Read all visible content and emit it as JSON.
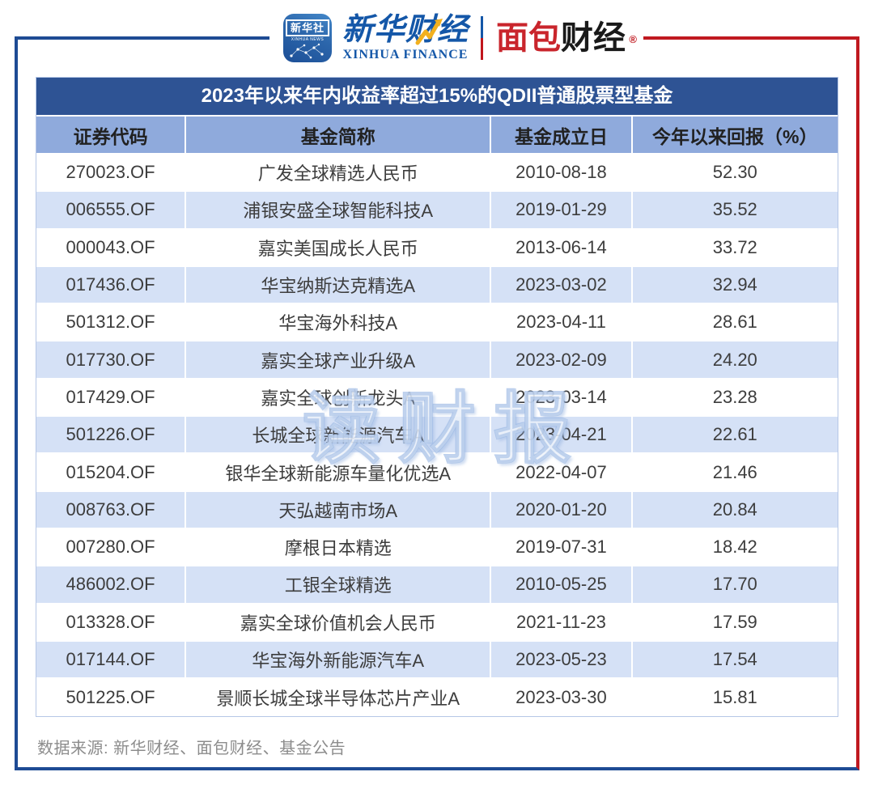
{
  "brand": {
    "app_icon": {
      "cn": "新华社",
      "en": "XINHUA NEWS"
    },
    "xinhua_finance": {
      "cn": "新华财经",
      "en": "XINHUA FINANCE"
    },
    "bread_finance": {
      "red_part": "面包",
      "black_part": "财经",
      "reg_mark": "®"
    },
    "colors": {
      "brand_blue": "#1457A8",
      "brand_red": "#C9252C",
      "frame_blue": "#1E4B94",
      "frame_red": "#C01920"
    }
  },
  "table": {
    "title": "2023年以来年内收益率超过15%的QDII普通股票型基金",
    "columns": [
      "证券代码",
      "基金简称",
      "基金成立日",
      "今年以来回报（%）"
    ],
    "rows": [
      [
        "270023.OF",
        "广发全球精选人民币",
        "2010-08-18",
        "52.30"
      ],
      [
        "006555.OF",
        "浦银安盛全球智能科技A",
        "2019-01-29",
        "35.52"
      ],
      [
        "000043.OF",
        "嘉实美国成长人民币",
        "2013-06-14",
        "33.72"
      ],
      [
        "017436.OF",
        "华宝纳斯达克精选A",
        "2023-03-02",
        "32.94"
      ],
      [
        "501312.OF",
        "华宝海外科技A",
        "2023-04-11",
        "28.61"
      ],
      [
        "017730.OF",
        "嘉实全球产业升级A",
        "2023-02-09",
        "24.20"
      ],
      [
        "017429.OF",
        "嘉实全球创新龙头A",
        "2023-03-14",
        "23.28"
      ],
      [
        "501226.OF",
        "长城全球新能源汽车A",
        "2023-04-21",
        "22.61"
      ],
      [
        "015204.OF",
        "银华全球新能源车量化优选A",
        "2022-04-07",
        "21.46"
      ],
      [
        "008763.OF",
        "天弘越南市场A",
        "2020-01-20",
        "20.84"
      ],
      [
        "007280.OF",
        "摩根日本精选",
        "2019-07-31",
        "18.42"
      ],
      [
        "486002.OF",
        "工银全球精选",
        "2010-05-25",
        "17.70"
      ],
      [
        "013328.OF",
        "嘉实全球价值机会人民币",
        "2021-11-23",
        "17.59"
      ],
      [
        "017144.OF",
        "华宝海外新能源汽车A",
        "2023-05-23",
        "17.54"
      ],
      [
        "501225.OF",
        "景顺长城全球半导体芯片产业A",
        "2023-03-30",
        "15.81"
      ]
    ],
    "colors": {
      "title_bg": "#2E5394",
      "header_bg": "#8FAADC",
      "row_alt_bg": "#D5E1F6",
      "text": "#3D3D3D"
    }
  },
  "chart_data": {
    "type": "table",
    "title": "2023年以来年内收益率超过15%的QDII普通股票型基金",
    "columns": [
      "证券代码",
      "基金简称",
      "基金成立日",
      "今年以来回报（%）"
    ],
    "rows": [
      [
        "270023.OF",
        "广发全球精选人民币",
        "2010-08-18",
        52.3
      ],
      [
        "006555.OF",
        "浦银安盛全球智能科技A",
        "2019-01-29",
        35.52
      ],
      [
        "000043.OF",
        "嘉实美国成长人民币",
        "2013-06-14",
        33.72
      ],
      [
        "017436.OF",
        "华宝纳斯达克精选A",
        "2023-03-02",
        32.94
      ],
      [
        "501312.OF",
        "华宝海外科技A",
        "2023-04-11",
        28.61
      ],
      [
        "017730.OF",
        "嘉实全球产业升级A",
        "2023-02-09",
        24.2
      ],
      [
        "017429.OF",
        "嘉实全球创新龙头A",
        "2023-03-14",
        23.28
      ],
      [
        "501226.OF",
        "长城全球新能源汽车A",
        "2023-04-21",
        22.61
      ],
      [
        "015204.OF",
        "银华全球新能源车量化优选A",
        "2022-04-07",
        21.46
      ],
      [
        "008763.OF",
        "天弘越南市场A",
        "2020-01-20",
        20.84
      ],
      [
        "007280.OF",
        "摩根日本精选",
        "2019-07-31",
        18.42
      ],
      [
        "486002.OF",
        "工银全球精选",
        "2010-05-25",
        17.7
      ],
      [
        "013328.OF",
        "嘉实全球价值机会人民币",
        "2021-11-23",
        17.59
      ],
      [
        "017144.OF",
        "华宝海外新能源汽车A",
        "2023-05-23",
        17.54
      ],
      [
        "501225.OF",
        "景顺长城全球半导体芯片产业A",
        "2023-03-30",
        15.81
      ]
    ]
  },
  "watermark": "读财报",
  "footer": "数据来源: 新华财经、面包财经、基金公告"
}
